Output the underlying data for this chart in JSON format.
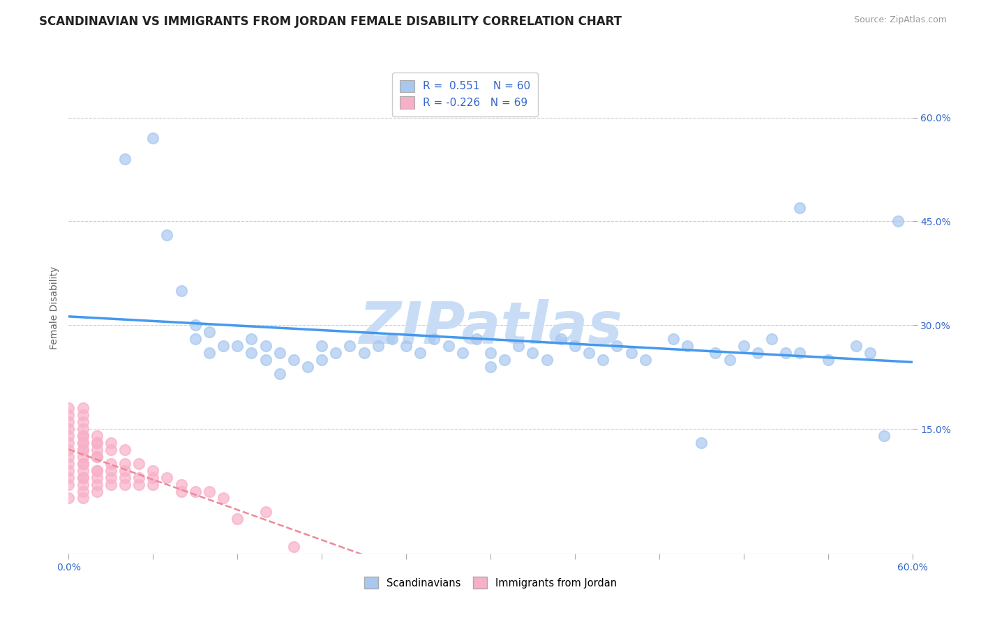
{
  "title": "SCANDINAVIAN VS IMMIGRANTS FROM JORDAN FEMALE DISABILITY CORRELATION CHART",
  "source": "Source: ZipAtlas.com",
  "ylabel": "Female Disability",
  "xmin": 0.0,
  "xmax": 0.6,
  "ymin": -0.03,
  "ymax": 0.68,
  "right_yticks": [
    0.15,
    0.3,
    0.45,
    0.6
  ],
  "right_yticklabels": [
    "15.0%",
    "30.0%",
    "45.0%",
    "60.0%"
  ],
  "r_scand": 0.551,
  "n_scand": 60,
  "r_jordan": -0.226,
  "n_jordan": 69,
  "scand_color": "#a8c8f0",
  "jordan_color": "#f8b0c8",
  "scand_line_color": "#4499ee",
  "jordan_line_color": "#ee8899",
  "legend_label_scand": "Scandinavians",
  "legend_label_jordan": "Immigrants from Jordan",
  "watermark": "ZIPatlas",
  "watermark_color": "#c8ddf5",
  "grid_color": "#cccccc",
  "scand_scatter_x": [
    0.04,
    0.06,
    0.07,
    0.08,
    0.09,
    0.09,
    0.1,
    0.1,
    0.11,
    0.12,
    0.13,
    0.13,
    0.14,
    0.14,
    0.15,
    0.15,
    0.16,
    0.17,
    0.18,
    0.18,
    0.19,
    0.2,
    0.21,
    0.22,
    0.23,
    0.24,
    0.25,
    0.26,
    0.27,
    0.28,
    0.29,
    0.3,
    0.3,
    0.31,
    0.32,
    0.33,
    0.34,
    0.35,
    0.36,
    0.37,
    0.38,
    0.39,
    0.4,
    0.41,
    0.43,
    0.44,
    0.45,
    0.46,
    0.47,
    0.48,
    0.49,
    0.5,
    0.51,
    0.52,
    0.52,
    0.54,
    0.56,
    0.57,
    0.58,
    0.59
  ],
  "scand_scatter_y": [
    0.54,
    0.57,
    0.43,
    0.35,
    0.3,
    0.28,
    0.29,
    0.26,
    0.27,
    0.27,
    0.26,
    0.28,
    0.27,
    0.25,
    0.26,
    0.23,
    0.25,
    0.24,
    0.27,
    0.25,
    0.26,
    0.27,
    0.26,
    0.27,
    0.28,
    0.27,
    0.26,
    0.28,
    0.27,
    0.26,
    0.28,
    0.26,
    0.24,
    0.25,
    0.27,
    0.26,
    0.25,
    0.28,
    0.27,
    0.26,
    0.25,
    0.27,
    0.26,
    0.25,
    0.28,
    0.27,
    0.13,
    0.26,
    0.25,
    0.27,
    0.26,
    0.28,
    0.26,
    0.47,
    0.26,
    0.25,
    0.27,
    0.26,
    0.14,
    0.45
  ],
  "jordan_scatter_x": [
    0.0,
    0.0,
    0.0,
    0.0,
    0.0,
    0.0,
    0.0,
    0.0,
    0.0,
    0.0,
    0.0,
    0.0,
    0.0,
    0.01,
    0.01,
    0.01,
    0.01,
    0.01,
    0.01,
    0.01,
    0.01,
    0.01,
    0.01,
    0.01,
    0.01,
    0.01,
    0.01,
    0.01,
    0.01,
    0.01,
    0.01,
    0.01,
    0.02,
    0.02,
    0.02,
    0.02,
    0.02,
    0.02,
    0.02,
    0.02,
    0.02,
    0.02,
    0.02,
    0.03,
    0.03,
    0.03,
    0.03,
    0.03,
    0.03,
    0.04,
    0.04,
    0.04,
    0.04,
    0.04,
    0.05,
    0.05,
    0.05,
    0.06,
    0.06,
    0.06,
    0.07,
    0.08,
    0.08,
    0.09,
    0.1,
    0.11,
    0.12,
    0.14,
    0.16
  ],
  "jordan_scatter_y": [
    0.05,
    0.07,
    0.08,
    0.09,
    0.1,
    0.11,
    0.12,
    0.13,
    0.14,
    0.15,
    0.16,
    0.17,
    0.18,
    0.05,
    0.07,
    0.08,
    0.09,
    0.1,
    0.11,
    0.12,
    0.13,
    0.14,
    0.15,
    0.16,
    0.17,
    0.18,
    0.06,
    0.08,
    0.1,
    0.12,
    0.13,
    0.14,
    0.06,
    0.08,
    0.09,
    0.11,
    0.12,
    0.13,
    0.14,
    0.07,
    0.09,
    0.11,
    0.13,
    0.08,
    0.1,
    0.12,
    0.13,
    0.07,
    0.09,
    0.08,
    0.1,
    0.12,
    0.07,
    0.09,
    0.08,
    0.1,
    0.07,
    0.09,
    0.08,
    0.07,
    0.08,
    0.07,
    0.06,
    0.06,
    0.06,
    0.05,
    0.02,
    0.03,
    -0.02
  ]
}
